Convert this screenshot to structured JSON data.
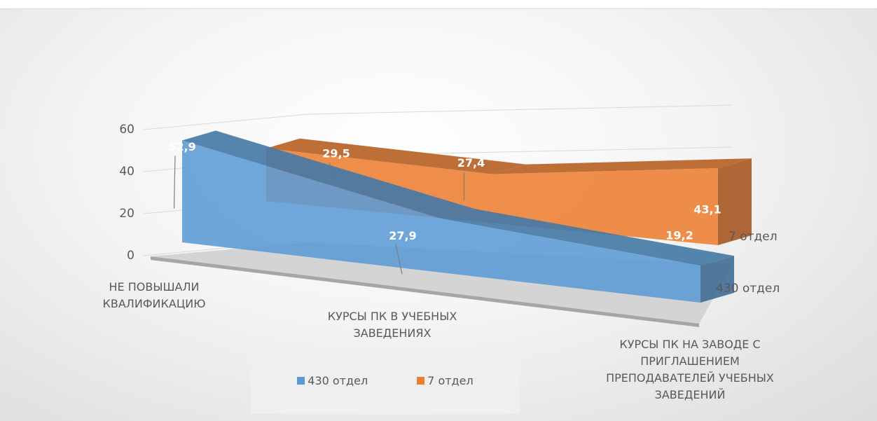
{
  "chart_data": {
    "type": "area3d",
    "categories": [
      "НЕ ПОВЫШАЛИ КВАЛИФИКАЦИЮ",
      "КУРСЫ ПК В УЧЕБНЫХ ЗАВЕДЕНИЯХ",
      "КУРСЫ ПК НА ЗАВОДЕ С ПРИГЛАШЕНИЕМ ПРЕПОДАВАТЕЛЕЙ УЧЕБНЫХ ЗАВЕДЕНИЙ"
    ],
    "series": [
      {
        "name": "430 отдел",
        "color": "#5b9bd5",
        "values": [
          52.9,
          27.9,
          19.2
        ],
        "value_labels": [
          "52,9",
          "27,9",
          "19,2"
        ]
      },
      {
        "name": "7 отдел",
        "color": "#ed7d31",
        "values": [
          29.5,
          27.4,
          43.1
        ],
        "value_labels": [
          "29,5",
          "27,4",
          "43,1"
        ]
      }
    ],
    "ylim": [
      0,
      60
    ],
    "yticks": [
      0,
      20,
      40,
      60
    ],
    "grid": true,
    "legend": "bottom"
  }
}
